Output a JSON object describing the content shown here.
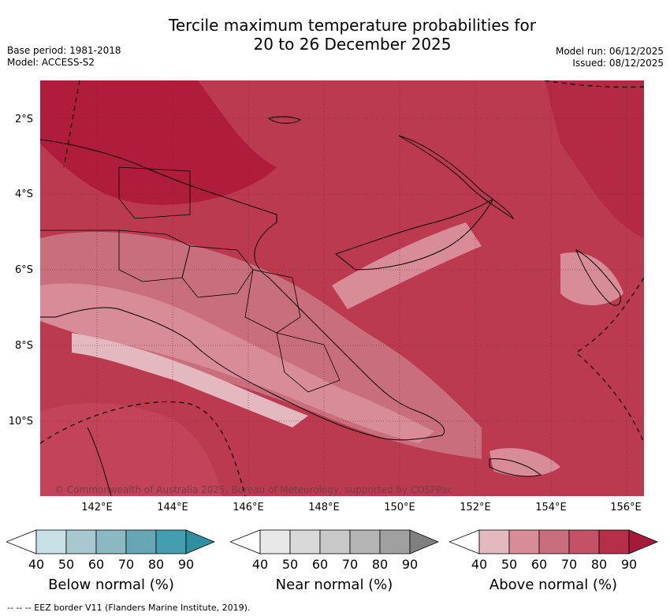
{
  "title": {
    "line1": "Tercile maximum temperature probabilities for",
    "line2": "20 to 26 December 2025"
  },
  "meta": {
    "base_period": "Base period: 1981-2018",
    "model": "Model: ACCESS-S2",
    "model_run": "Model run: 06/12/2025",
    "issued": "Issued: 08/12/2025"
  },
  "map": {
    "lat_labels": [
      "2°S",
      "4°S",
      "6°S",
      "8°S",
      "10°S"
    ],
    "lon_labels": [
      "142°E",
      "144°E",
      "146°E",
      "148°E",
      "150°E",
      "152°E",
      "154°E",
      "156°E"
    ],
    "copyright": "© Commonwealth of Australia 2025, Bureau of Meteorology, supported by COSPPac"
  },
  "legend": {
    "below": {
      "label": "Below normal (%)",
      "ticks": [
        "40",
        "50",
        "60",
        "70",
        "80",
        "90"
      ],
      "colors": [
        "#ffffff",
        "#c8e1e7",
        "#a8c8cf",
        "#8ab8c3",
        "#67a6b5",
        "#449eb0",
        "#2e8fa0"
      ]
    },
    "near": {
      "label": "Near normal (%)",
      "ticks": [
        "40",
        "50",
        "60",
        "70",
        "80",
        "90"
      ],
      "colors": [
        "#ffffff",
        "#e8e8e8",
        "#d9d9d9",
        "#c8c8c8",
        "#b4b4b4",
        "#a0a0a0",
        "#808080"
      ]
    },
    "above": {
      "label": "Above normal (%)",
      "ticks": [
        "40",
        "50",
        "60",
        "70",
        "80",
        "90"
      ],
      "colors": [
        "#ffffff",
        "#e3b8bf",
        "#d78c97",
        "#c96e7c",
        "#c35266",
        "#b42f48",
        "#a51a38"
      ]
    }
  },
  "footnote": "--  --  -- EEZ border V11 (Flanders Marine Institute, 2019)."
}
